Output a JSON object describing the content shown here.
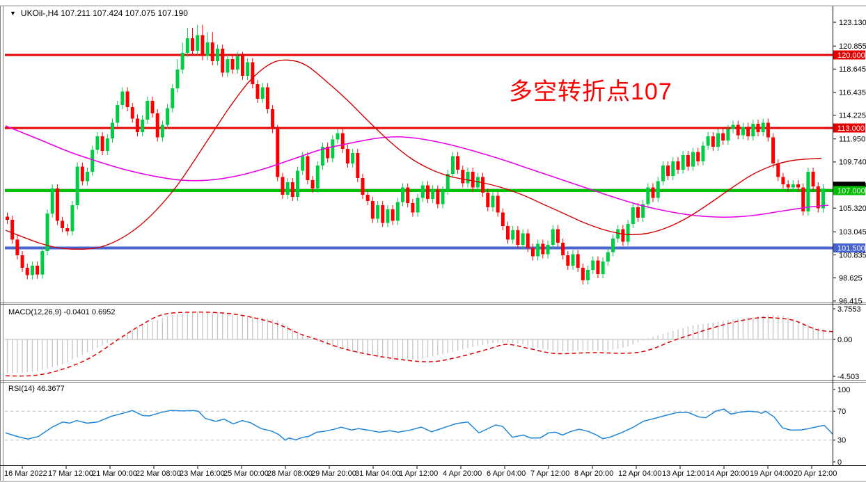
{
  "titlebar": {
    "dropdown_glyph": "▼",
    "title": "UKOil-,H4  107.211 107.424 107.075 107.190"
  },
  "annotation": {
    "text": "多空转折点107",
    "color": "#FB0000"
  },
  "chart_data": {
    "type": "candlestick",
    "symbol": "UKOil-",
    "timeframe": "H4",
    "ohlc_display": {
      "open": "107.211",
      "high": "107.424",
      "low": "107.075",
      "close": "107.190"
    },
    "colors": {
      "bull": "#00CC44",
      "bear": "#FB0000",
      "ma_fast": "#D40000",
      "ma_slow": "#E800E8",
      "hline_red": "#E40000",
      "hline_green": "#00BE00",
      "hline_blue": "#4663D0",
      "current_price_line": "#BBBBBB",
      "macd_hist": "#C8C8C8",
      "macd_signal": "#E00000",
      "rsi_line": "#1F86D9",
      "rsi_level": "#BFBFBF"
    },
    "price_axis": {
      "ticks": [
        "123.130",
        "120.855",
        "118.645",
        "116.435",
        "114.225",
        "111.950",
        "109.740",
        "107.530",
        "105.320",
        "103.045",
        "100.835",
        "98.625",
        "96.415"
      ],
      "tick_values": [
        123.13,
        120.855,
        118.645,
        116.435,
        114.225,
        111.95,
        109.74,
        107.53,
        105.32,
        103.045,
        100.835,
        98.625,
        96.415
      ],
      "badges": [
        {
          "label": "120.000",
          "value": 120.0,
          "color": "#E40000",
          "text": "#FFFFFF"
        },
        {
          "label": "113.000",
          "value": 113.0,
          "color": "#E40000",
          "text": "#FFFFFF"
        },
        {
          "label": "107.000",
          "value": 107.0,
          "color": "#00BE00",
          "text": "#FFFFFF"
        },
        {
          "label": "101.500",
          "value": 101.5,
          "color": "#4663D0",
          "text": "#FFFFFF"
        }
      ],
      "black_marker_value": 107.45
    },
    "hlines": [
      {
        "name": "resistance-120",
        "price": 120.0,
        "color": "#E40000",
        "width": 3
      },
      {
        "name": "resistance-113",
        "price": 113.0,
        "color": "#E40000",
        "width": 3
      },
      {
        "name": "pivot-107",
        "price": 107.0,
        "color": "#00BE00",
        "width": 4
      },
      {
        "name": "support-101.5",
        "price": 101.5,
        "color": "#4663D0",
        "width": 4
      },
      {
        "name": "current-price",
        "price": 107.19,
        "color": "#BBBBBB",
        "width": 1
      }
    ],
    "time_axis": {
      "labels": [
        "16 Mar 2022",
        "17 Mar 12:00",
        "21 Mar 00:00",
        "22 Mar 08:00",
        "23 Mar 16:00",
        "25 Mar 00:00",
        "28 Mar 08:00",
        "29 Mar 20:00",
        "31 Mar 04:00",
        "1 Apr 12:00",
        "4 Apr 20:00",
        "6 Apr 04:00",
        "7 Apr 12:00",
        "8 Apr 20:00",
        "12 Apr 04:00",
        "13 Apr 12:00",
        "14 Apr 20:00",
        "19 Apr 04:00",
        "20 Apr 12:00"
      ]
    },
    "candles": {
      "first_open": 104.5,
      "wick": 0.4,
      "closes": [
        104.2,
        102.3,
        100.8,
        99.6,
        98.9,
        99.8,
        98.95,
        101.2,
        104.8,
        107.2,
        104.1,
        103.4,
        103.1,
        105.6,
        109.3,
        107.9,
        108.8,
        110.9,
        112.2,
        110.8,
        112.0,
        113.5,
        115.2,
        116.5,
        115.0,
        113.9,
        112.6,
        113.8,
        115.6,
        114.4,
        112.1,
        113.3,
        114.9,
        116.8,
        118.6,
        120.2,
        121.6,
        120.4,
        121.9,
        119.9,
        121.2,
        119.4,
        120.6,
        118.3,
        119.6,
        118.6,
        119.9,
        118.0,
        119.3,
        117.2,
        115.8,
        116.9,
        114.8,
        112.9,
        108.3,
        106.6,
        107.8,
        106.4,
        108.9,
        110.3,
        108.0,
        107.2,
        109.4,
        111.2,
        110.1,
        111.9,
        112.5,
        111.0,
        109.6,
        110.6,
        108.2,
        106.6,
        106.0,
        104.3,
        105.6,
        103.9,
        105.2,
        104.1,
        105.9,
        107.3,
        105.8,
        104.9,
        106.3,
        107.5,
        106.2,
        107.1,
        105.7,
        107.0,
        108.6,
        110.3,
        109.0,
        107.7,
        108.8,
        107.3,
        108.3,
        106.8,
        105.4,
        106.5,
        104.9,
        103.6,
        102.3,
        103.2,
        101.8,
        102.9,
        101.5,
        100.7,
        101.9,
        100.9,
        101.8,
        103.3,
        102.0,
        100.8,
        99.8,
        100.9,
        99.6,
        98.4,
        99.4,
        100.3,
        99.0,
        100.2,
        101.1,
        102.4,
        103.3,
        102.1,
        103.8,
        105.4,
        104.4,
        105.7,
        107.3,
        106.3,
        107.9,
        109.4,
        108.4,
        109.8,
        109.0,
        110.4,
        109.3,
        110.7,
        109.8,
        111.3,
        112.2,
        111.2,
        112.5,
        111.8,
        112.9,
        113.3,
        112.3,
        113.1,
        112.2,
        113.4,
        112.6,
        113.5,
        112.1,
        109.6,
        108.3,
        107.6,
        107.3,
        107.6,
        107.3,
        105.0,
        108.8,
        107.4,
        105.3,
        107.19
      ]
    },
    "ma_fast": [
      [
        8,
        103.2
      ],
      [
        60,
        101.9
      ],
      [
        100,
        101.4
      ],
      [
        150,
        101.7
      ],
      [
        200,
        103.6
      ],
      [
        250,
        107.1
      ],
      [
        300,
        112.0
      ],
      [
        330,
        115.0
      ],
      [
        360,
        117.6
      ],
      [
        390,
        119.2
      ],
      [
        415,
        119.5
      ],
      [
        440,
        119.0
      ],
      [
        470,
        117.4
      ],
      [
        500,
        115.6
      ],
      [
        530,
        113.6
      ],
      [
        560,
        111.7
      ],
      [
        590,
        110.1
      ],
      [
        620,
        109.0
      ],
      [
        650,
        108.3
      ],
      [
        690,
        107.8
      ],
      [
        720,
        107.3
      ],
      [
        750,
        106.6
      ],
      [
        780,
        105.7
      ],
      [
        810,
        104.8
      ],
      [
        840,
        103.9
      ],
      [
        870,
        103.2
      ],
      [
        900,
        102.8
      ],
      [
        930,
        102.9
      ],
      [
        960,
        103.5
      ],
      [
        990,
        104.5
      ],
      [
        1020,
        105.8
      ],
      [
        1050,
        107.2
      ],
      [
        1080,
        108.5
      ],
      [
        1110,
        109.4
      ],
      [
        1140,
        109.9
      ],
      [
        1180,
        110.1
      ]
    ],
    "ma_slow": [
      [
        8,
        113.2
      ],
      [
        60,
        111.8
      ],
      [
        100,
        110.7
      ],
      [
        140,
        109.8
      ],
      [
        180,
        109.0
      ],
      [
        220,
        108.4
      ],
      [
        260,
        108.0
      ],
      [
        300,
        108.0
      ],
      [
        340,
        108.4
      ],
      [
        380,
        109.1
      ],
      [
        420,
        110.0
      ],
      [
        460,
        110.9
      ],
      [
        500,
        111.5
      ],
      [
        540,
        112.0
      ],
      [
        570,
        112.15
      ],
      [
        600,
        112.0
      ],
      [
        640,
        111.5
      ],
      [
        680,
        110.8
      ],
      [
        720,
        110.0
      ],
      [
        760,
        109.1
      ],
      [
        800,
        108.2
      ],
      [
        840,
        107.3
      ],
      [
        880,
        106.4
      ],
      [
        920,
        105.6
      ],
      [
        960,
        105.0
      ],
      [
        1000,
        104.6
      ],
      [
        1040,
        104.45
      ],
      [
        1080,
        104.6
      ],
      [
        1120,
        105.0
      ],
      [
        1160,
        105.4
      ],
      [
        1190,
        105.6
      ]
    ],
    "macd": {
      "label": "MACD(12,26,9) -0.0401 0.6952",
      "macd_value": -0.0401,
      "signal_value": 0.6952,
      "axis_labels": [
        "3.7553",
        "0.00",
        "-4.503"
      ],
      "axis_values": [
        3.7553,
        0.0,
        -4.503
      ],
      "signal": [
        [
          8,
          -4.4
        ],
        [
          50,
          -4.35
        ],
        [
          90,
          -3.6
        ],
        [
          130,
          -2.2
        ],
        [
          170,
          0.0
        ],
        [
          200,
          1.6
        ],
        [
          234,
          3.0
        ],
        [
          280,
          3.3
        ],
        [
          326,
          3.15
        ],
        [
          360,
          2.7
        ],
        [
          397,
          1.9
        ],
        [
          430,
          0.7
        ],
        [
          455,
          0.0
        ],
        [
          497,
          -1.2
        ],
        [
          556,
          -2.2
        ],
        [
          616,
          -2.7
        ],
        [
          660,
          -2.1
        ],
        [
          700,
          -1.2
        ],
        [
          728,
          -0.6
        ],
        [
          760,
          -1.1
        ],
        [
          798,
          -1.7
        ],
        [
          850,
          -1.6
        ],
        [
          918,
          -1.55
        ],
        [
          972,
          0.0
        ],
        [
          1020,
          1.3
        ],
        [
          1055,
          2.1
        ],
        [
          1088,
          2.6
        ],
        [
          1110,
          2.6
        ],
        [
          1140,
          2.3
        ],
        [
          1178,
          1.1
        ],
        [
          1230,
          0.85
        ]
      ],
      "histogram": [
        [
          8,
          -4.1
        ],
        [
          50,
          -3.9
        ],
        [
          90,
          -3.0
        ],
        [
          120,
          -1.8
        ],
        [
          150,
          -0.6
        ],
        [
          170,
          0.2
        ],
        [
          200,
          1.6
        ],
        [
          240,
          2.8
        ],
        [
          280,
          3.4
        ],
        [
          310,
          3.3
        ],
        [
          340,
          2.9
        ],
        [
          370,
          2.7
        ],
        [
          400,
          2.3
        ],
        [
          430,
          0.8
        ],
        [
          450,
          0.0
        ],
        [
          470,
          -0.7
        ],
        [
          500,
          -1.4
        ],
        [
          540,
          -2.1
        ],
        [
          575,
          -2.5
        ],
        [
          605,
          -2.4
        ],
        [
          640,
          -1.7
        ],
        [
          680,
          -0.9
        ],
        [
          710,
          -0.4
        ],
        [
          740,
          -0.4
        ],
        [
          770,
          -1.0
        ],
        [
          800,
          -1.5
        ],
        [
          840,
          -1.3
        ],
        [
          870,
          -1.4
        ],
        [
          900,
          -0.9
        ],
        [
          930,
          0.1
        ],
        [
          960,
          0.9
        ],
        [
          990,
          1.6
        ],
        [
          1020,
          2.0
        ],
        [
          1050,
          2.4
        ],
        [
          1080,
          2.7
        ],
        [
          1105,
          3.0
        ],
        [
          1125,
          2.9
        ],
        [
          1150,
          2.1
        ],
        [
          1170,
          1.5
        ],
        [
          1190,
          1.0
        ],
        [
          1215,
          0.6
        ],
        [
          1235,
          0.5
        ]
      ]
    },
    "rsi": {
      "label": "RSI(14) 46.3677",
      "value": 46.3677,
      "axis_labels": [
        "100",
        "70",
        "30",
        "0"
      ],
      "axis_values": [
        100,
        70,
        30,
        0
      ],
      "levels": [
        70,
        30
      ],
      "line": [
        [
          8,
          40
        ],
        [
          25,
          35
        ],
        [
          40,
          31.5
        ],
        [
          55,
          35
        ],
        [
          75,
          48
        ],
        [
          90,
          55
        ],
        [
          100,
          53.5
        ],
        [
          110,
          57
        ],
        [
          125,
          53.5
        ],
        [
          140,
          55
        ],
        [
          160,
          63
        ],
        [
          180,
          68
        ],
        [
          190,
          71
        ],
        [
          205,
          64
        ],
        [
          215,
          63.5
        ],
        [
          230,
          68
        ],
        [
          245,
          71
        ],
        [
          262,
          70.5
        ],
        [
          278,
          71
        ],
        [
          285,
          70
        ],
        [
          295,
          60
        ],
        [
          310,
          56
        ],
        [
          322,
          59
        ],
        [
          335,
          52.5
        ],
        [
          348,
          57
        ],
        [
          360,
          54
        ],
        [
          375,
          46
        ],
        [
          390,
          42.5
        ],
        [
          400,
          38
        ],
        [
          410,
          30
        ],
        [
          415,
          33
        ],
        [
          425,
          30.5
        ],
        [
          435,
          34
        ],
        [
          443,
          35
        ],
        [
          455,
          41
        ],
        [
          465,
          42
        ],
        [
          480,
          45
        ],
        [
          490,
          48
        ],
        [
          505,
          44
        ],
        [
          515,
          46
        ],
        [
          528,
          44
        ],
        [
          545,
          41
        ],
        [
          560,
          43
        ],
        [
          572,
          41
        ],
        [
          590,
          44
        ],
        [
          605,
          48
        ],
        [
          620,
          41.5
        ],
        [
          640,
          48
        ],
        [
          656,
          53
        ],
        [
          672,
          55
        ],
        [
          688,
          40
        ],
        [
          712,
          51
        ],
        [
          722,
          49
        ],
        [
          736,
          34
        ],
        [
          752,
          37
        ],
        [
          762,
          33
        ],
        [
          776,
          33
        ],
        [
          788,
          40
        ],
        [
          798,
          41
        ],
        [
          808,
          37
        ],
        [
          820,
          42
        ],
        [
          832,
          45
        ],
        [
          845,
          42
        ],
        [
          855,
          38
        ],
        [
          866,
          32
        ],
        [
          876,
          34
        ],
        [
          892,
          40
        ],
        [
          908,
          47
        ],
        [
          924,
          56
        ],
        [
          940,
          60
        ],
        [
          956,
          64
        ],
        [
          972,
          68
        ],
        [
          988,
          68.5
        ],
        [
          1004,
          62
        ],
        [
          1014,
          61
        ],
        [
          1028,
          70
        ],
        [
          1040,
          73
        ],
        [
          1050,
          66
        ],
        [
          1062,
          68.5
        ],
        [
          1075,
          70
        ],
        [
          1088,
          69
        ],
        [
          1094,
          67
        ],
        [
          1100,
          70
        ],
        [
          1112,
          62
        ],
        [
          1124,
          47
        ],
        [
          1135,
          44
        ],
        [
          1150,
          44
        ],
        [
          1162,
          46
        ],
        [
          1176,
          49
        ],
        [
          1184,
          50.5
        ],
        [
          1196,
          38.5
        ],
        [
          1205,
          43
        ],
        [
          1215,
          45.5
        ],
        [
          1228,
          46
        ],
        [
          1236,
          46.4
        ]
      ]
    }
  }
}
